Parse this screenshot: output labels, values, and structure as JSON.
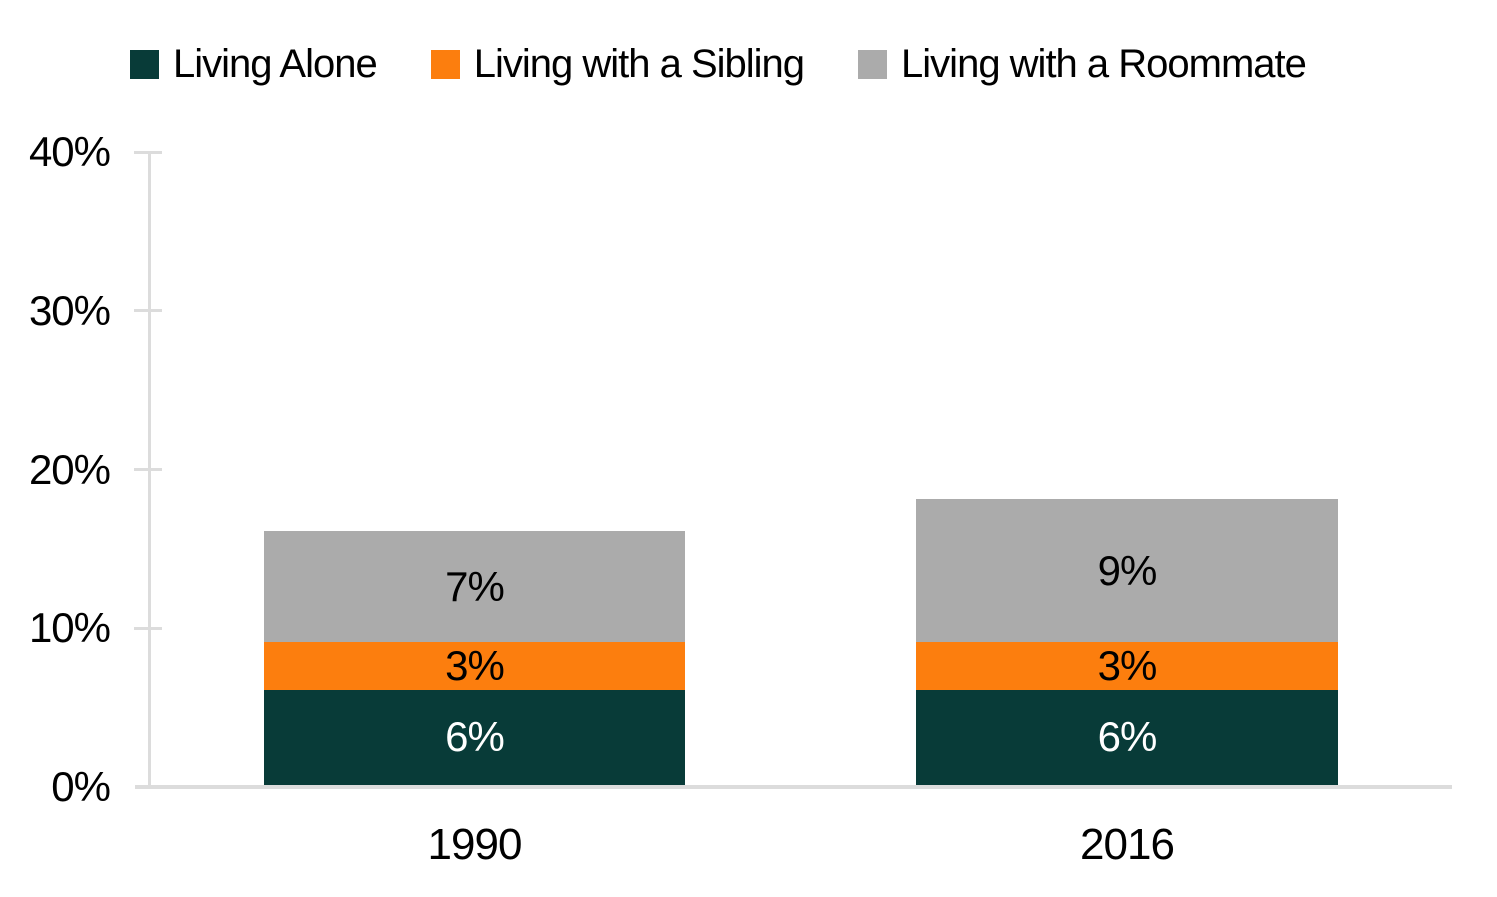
{
  "colors": {
    "living_alone": "#083b38",
    "living_with_sibling": "#fc7e0e",
    "living_with_roommate": "#ababab",
    "axis_line": "#dcdcdc",
    "text": "#000000",
    "label_on_dark": "#ffffff",
    "background": "#ffffff"
  },
  "chart_data": {
    "type": "bar",
    "stacked": true,
    "title": "",
    "xlabel": "",
    "ylabel": "",
    "grid": false,
    "legend_position": "top",
    "categories": [
      "1990",
      "2016"
    ],
    "series": [
      {
        "name": "Living Alone",
        "values": [
          6,
          6
        ],
        "color": "#083b38",
        "label_color": "#ffffff"
      },
      {
        "name": "Living with a Sibling",
        "values": [
          3,
          3
        ],
        "color": "#fc7e0e",
        "label_color": "#000000"
      },
      {
        "name": "Living with a Roommate",
        "values": [
          7,
          9
        ],
        "color": "#ababab",
        "label_color": "#000000"
      }
    ],
    "data_labels": [
      [
        "6%",
        "3%",
        "7%"
      ],
      [
        "6%",
        "3%",
        "9%"
      ]
    ],
    "y_axis": {
      "min": 0,
      "max": 40,
      "tick_step": 10,
      "ticks": [
        "0%",
        "10%",
        "20%",
        "30%",
        "40%"
      ],
      "unit": "%"
    }
  }
}
